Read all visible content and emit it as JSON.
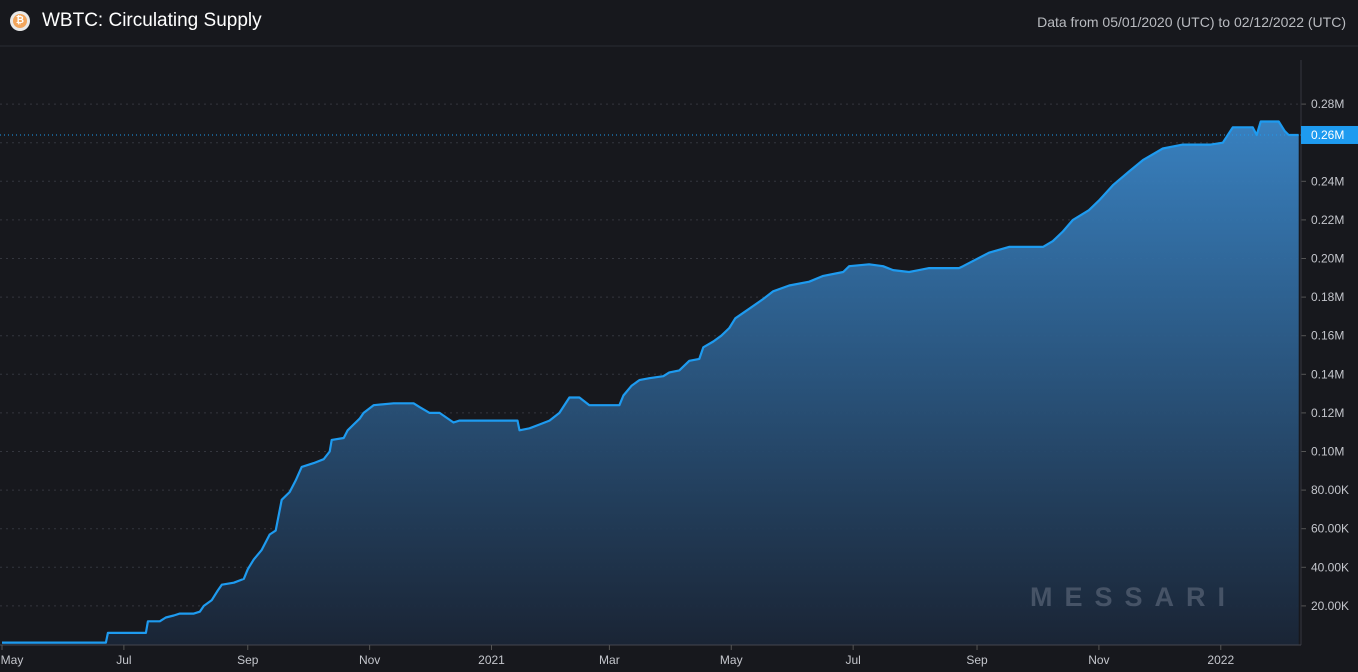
{
  "header": {
    "title": "WBTC: Circulating Supply",
    "range": "Data from 05/01/2020 (UTC) to 02/12/2022 (UTC)",
    "icon": "bitcoin-icon",
    "icon_glyph": "₿"
  },
  "watermark": "MESSARI",
  "colors": {
    "line": "#1e9bf0",
    "background": "#17181d",
    "label_bg": "#1e9bf0"
  },
  "chart_data": {
    "type": "area",
    "title": "WBTC: Circulating Supply",
    "xlabel": "",
    "ylabel": "",
    "x_unit": "days since 2020-05-01",
    "y_unit": "thousands",
    "ylim": [
      0,
      300
    ],
    "grid": true,
    "last_value_label": "0.26M",
    "y_ticks": [
      {
        "v": 20,
        "label": "20.00K"
      },
      {
        "v": 40,
        "label": "40.00K"
      },
      {
        "v": 60,
        "label": "60.00K"
      },
      {
        "v": 80,
        "label": "80.00K"
      },
      {
        "v": 100,
        "label": "0.10M"
      },
      {
        "v": 120,
        "label": "0.12M"
      },
      {
        "v": 140,
        "label": "0.14M"
      },
      {
        "v": 160,
        "label": "0.16M"
      },
      {
        "v": 180,
        "label": "0.18M"
      },
      {
        "v": 200,
        "label": "0.20M"
      },
      {
        "v": 220,
        "label": "0.22M"
      },
      {
        "v": 240,
        "label": "0.24M"
      },
      {
        "v": 260,
        "label": "0.26M"
      },
      {
        "v": 280,
        "label": "0.28M"
      }
    ],
    "x_ticks": [
      {
        "d": 0,
        "label": "May"
      },
      {
        "d": 61,
        "label": "Jul"
      },
      {
        "d": 123,
        "label": "Sep"
      },
      {
        "d": 184,
        "label": "Nov"
      },
      {
        "d": 245,
        "label": "2021"
      },
      {
        "d": 304,
        "label": "Mar"
      },
      {
        "d": 365,
        "label": "May"
      },
      {
        "d": 426,
        "label": "Jul"
      },
      {
        "d": 488,
        "label": "Sep"
      },
      {
        "d": 549,
        "label": "Nov"
      },
      {
        "d": 610,
        "label": "2022"
      }
    ],
    "points": [
      [
        0,
        1
      ],
      [
        52,
        1
      ],
      [
        53,
        6
      ],
      [
        72,
        6
      ],
      [
        73,
        12
      ],
      [
        79,
        12
      ],
      [
        82,
        14
      ],
      [
        86,
        15
      ],
      [
        89,
        16
      ],
      [
        96,
        16
      ],
      [
        99,
        17
      ],
      [
        101,
        20
      ],
      [
        105,
        23
      ],
      [
        108,
        28
      ],
      [
        110,
        31
      ],
      [
        116,
        32
      ],
      [
        121,
        34
      ],
      [
        123,
        39
      ],
      [
        126,
        44
      ],
      [
        130,
        49
      ],
      [
        134,
        57
      ],
      [
        137,
        59
      ],
      [
        140,
        75
      ],
      [
        144,
        79
      ],
      [
        147,
        85
      ],
      [
        150,
        92
      ],
      [
        156,
        94
      ],
      [
        161,
        96
      ],
      [
        164,
        100
      ],
      [
        165,
        106
      ],
      [
        171,
        107
      ],
      [
        173,
        111
      ],
      [
        176,
        114
      ],
      [
        179,
        117
      ],
      [
        181,
        120
      ],
      [
        186,
        124
      ],
      [
        196,
        125
      ],
      [
        206,
        125
      ],
      [
        209,
        123
      ],
      [
        214,
        120
      ],
      [
        219,
        120
      ],
      [
        226,
        115
      ],
      [
        229,
        116
      ],
      [
        258,
        116
      ],
      [
        259,
        111
      ],
      [
        264,
        112
      ],
      [
        269,
        114
      ],
      [
        274,
        116
      ],
      [
        279,
        120
      ],
      [
        284,
        128
      ],
      [
        289,
        128
      ],
      [
        294,
        124
      ],
      [
        309,
        124
      ],
      [
        311,
        129
      ],
      [
        315,
        134
      ],
      [
        319,
        137
      ],
      [
        324,
        138
      ],
      [
        331,
        139
      ],
      [
        334,
        141
      ],
      [
        339,
        142
      ],
      [
        344,
        147
      ],
      [
        349,
        148
      ],
      [
        351,
        154
      ],
      [
        356,
        157
      ],
      [
        360,
        160
      ],
      [
        364,
        164
      ],
      [
        367,
        169
      ],
      [
        374,
        174
      ],
      [
        381,
        179
      ],
      [
        386,
        183
      ],
      [
        394,
        186
      ],
      [
        404,
        188
      ],
      [
        411,
        191
      ],
      [
        421,
        193
      ],
      [
        424,
        196
      ],
      [
        434,
        197
      ],
      [
        441,
        196
      ],
      [
        446,
        194
      ],
      [
        454,
        193
      ],
      [
        459,
        194
      ],
      [
        464,
        195
      ],
      [
        479,
        195
      ],
      [
        481,
        196
      ],
      [
        494,
        203
      ],
      [
        504,
        206
      ],
      [
        521,
        206
      ],
      [
        526,
        209
      ],
      [
        531,
        214
      ],
      [
        536,
        220
      ],
      [
        544,
        225
      ],
      [
        549,
        230
      ],
      [
        556,
        238
      ],
      [
        564,
        245
      ],
      [
        571,
        251
      ],
      [
        581,
        257
      ],
      [
        591,
        259
      ],
      [
        605,
        259
      ],
      [
        611,
        260
      ],
      [
        616,
        268
      ],
      [
        626,
        268
      ],
      [
        628,
        264
      ],
      [
        630,
        271
      ],
      [
        639,
        271
      ],
      [
        642,
        266
      ],
      [
        644,
        264
      ],
      [
        649,
        264
      ]
    ]
  }
}
